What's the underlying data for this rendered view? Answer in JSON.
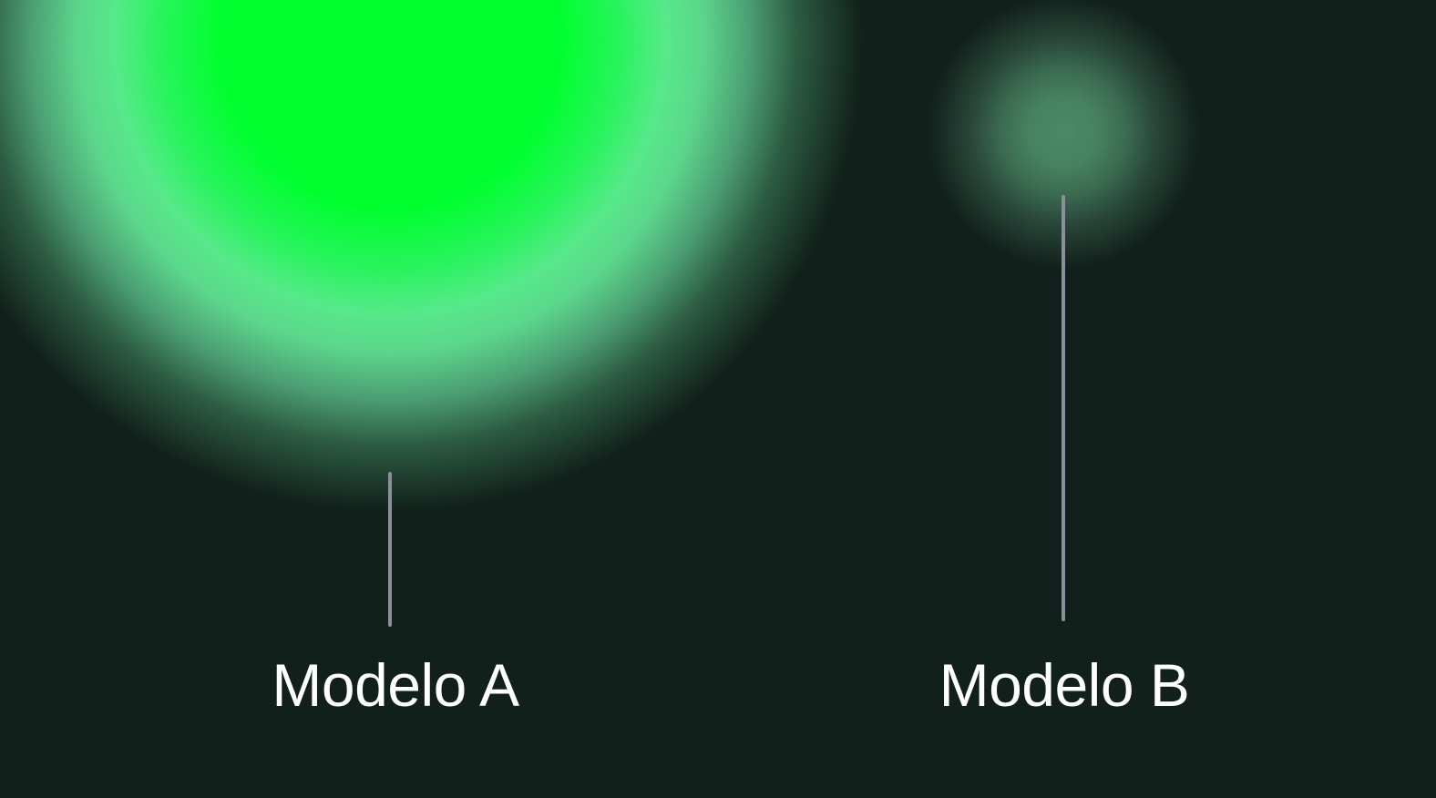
{
  "labels": {
    "model_a": "Modelo A",
    "model_b": "Modelo B"
  },
  "colors": {
    "background": "#11201a",
    "glow_a_core": "#00ff2f",
    "glow_a_halo": "#5cd68c",
    "glow_b_core": "#4a8a64",
    "connector_line": "#8a8f9b",
    "label_text": "#ffffff"
  }
}
